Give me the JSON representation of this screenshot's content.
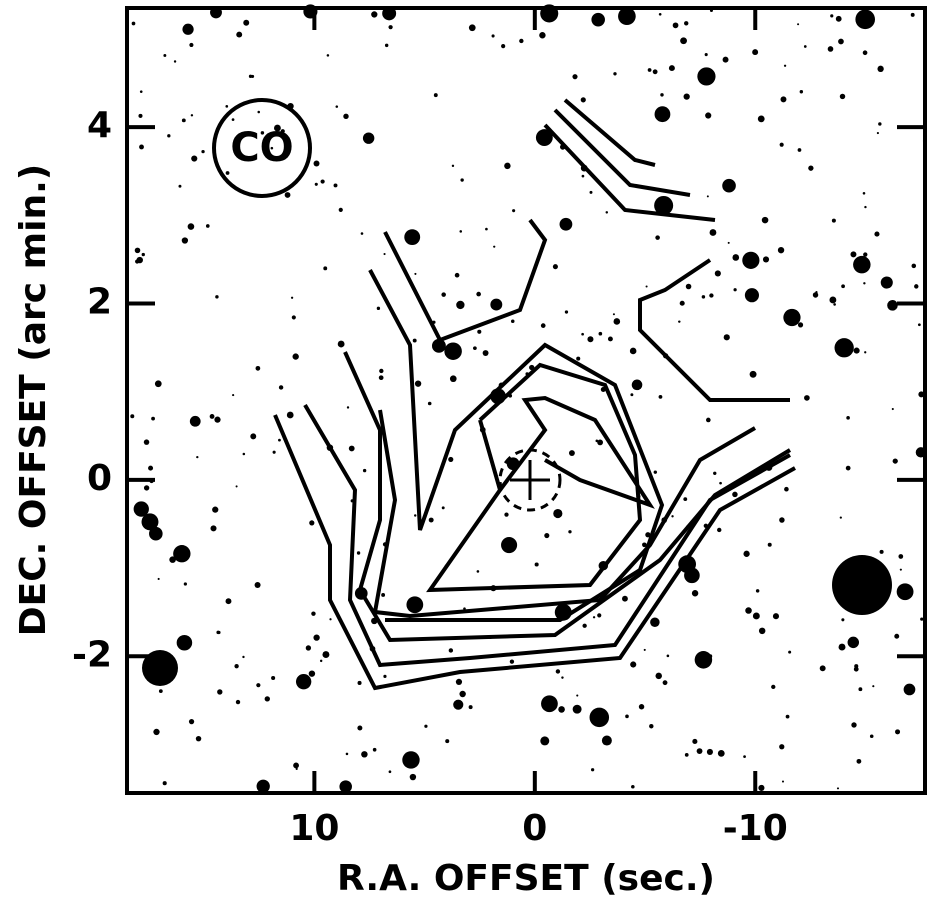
{
  "chart_data": {
    "type": "contour",
    "xlabel": "R.A. OFFSET (sec.)",
    "ylabel": "DEC. OFFSET (arc min.)",
    "annotation": "CO",
    "xlim": [
      18.5,
      -17.7
    ],
    "ylim": [
      -3.55,
      5.35
    ],
    "xticks": [
      10,
      0,
      -10
    ],
    "yticks": [
      4,
      2,
      0,
      -2
    ]
  }
}
